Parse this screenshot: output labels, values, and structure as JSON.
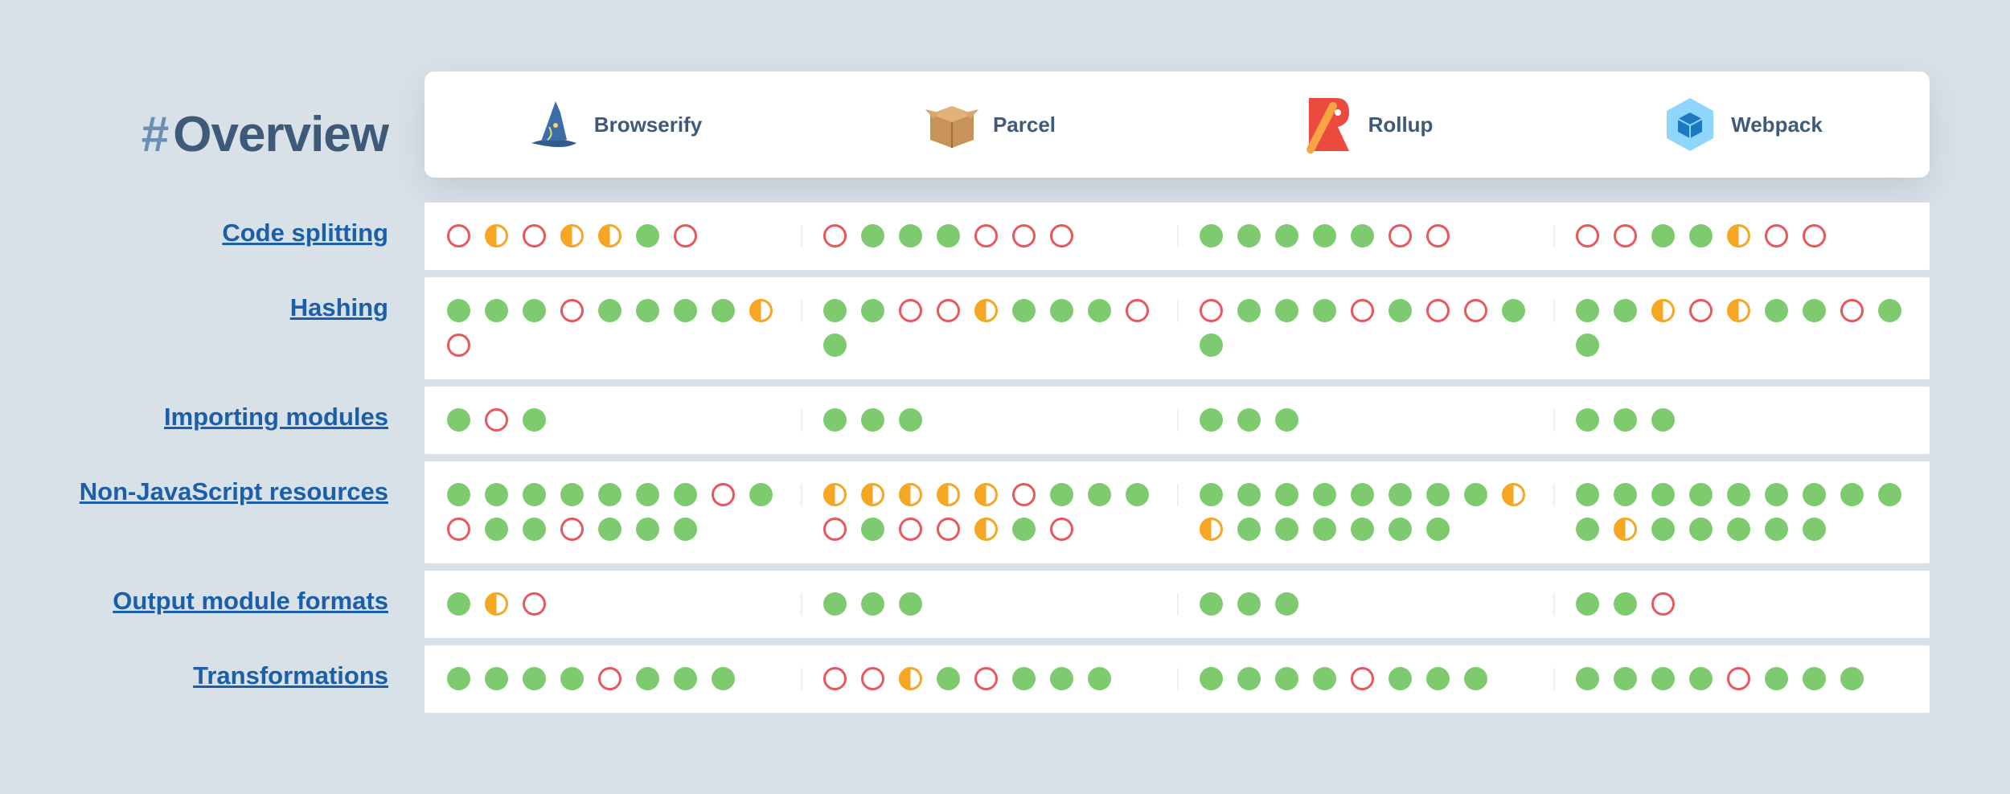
{
  "header": {
    "hash": "#",
    "title": "Overview",
    "tools": [
      "Browserify",
      "Parcel",
      "Rollup",
      "Webpack"
    ]
  },
  "rows": [
    {
      "label": "Code splitting",
      "results": [
        [
          "fail",
          "partial",
          "fail",
          "partial",
          "partial",
          "pass",
          "fail"
        ],
        [
          "fail",
          "pass",
          "pass",
          "pass",
          "fail",
          "fail",
          "fail"
        ],
        [
          "pass",
          "pass",
          "pass",
          "pass",
          "pass",
          "fail",
          "fail"
        ],
        [
          "fail",
          "fail",
          "pass",
          "pass",
          "partial",
          "fail",
          "fail"
        ]
      ]
    },
    {
      "label": "Hashing",
      "results": [
        [
          "pass",
          "pass",
          "pass",
          "fail",
          "pass",
          "pass",
          "pass",
          "pass",
          "partial",
          "fail"
        ],
        [
          "pass",
          "pass",
          "fail",
          "fail",
          "partial",
          "pass",
          "pass",
          "pass",
          "fail",
          "pass"
        ],
        [
          "fail",
          "pass",
          "pass",
          "pass",
          "fail",
          "pass",
          "fail",
          "fail",
          "pass",
          "pass"
        ],
        [
          "pass",
          "pass",
          "partial",
          "fail",
          "partial",
          "pass",
          "pass",
          "fail",
          "pass",
          "pass"
        ]
      ]
    },
    {
      "label": "Importing modules",
      "results": [
        [
          "pass",
          "fail",
          "pass"
        ],
        [
          "pass",
          "pass",
          "pass"
        ],
        [
          "pass",
          "pass",
          "pass"
        ],
        [
          "pass",
          "pass",
          "pass"
        ]
      ]
    },
    {
      "label": "Non-JavaScript resources",
      "results": [
        [
          "pass",
          "pass",
          "pass",
          "pass",
          "pass",
          "pass",
          "pass",
          "fail",
          "pass",
          "fail",
          "pass",
          "pass",
          "fail",
          "pass",
          "pass",
          "pass"
        ],
        [
          "partial",
          "partial",
          "partial",
          "partial",
          "partial",
          "fail",
          "pass",
          "pass",
          "pass",
          "fail",
          "pass",
          "fail",
          "fail",
          "partial",
          "pass",
          "fail"
        ],
        [
          "pass",
          "pass",
          "pass",
          "pass",
          "pass",
          "pass",
          "pass",
          "pass",
          "partial",
          "partial",
          "pass",
          "pass",
          "pass",
          "pass",
          "pass",
          "pass"
        ],
        [
          "pass",
          "pass",
          "pass",
          "pass",
          "pass",
          "pass",
          "pass",
          "pass",
          "pass",
          "pass",
          "partial",
          "pass",
          "pass",
          "pass",
          "pass",
          "pass"
        ]
      ]
    },
    {
      "label": "Output module formats",
      "results": [
        [
          "pass",
          "partial",
          "fail"
        ],
        [
          "pass",
          "pass",
          "pass"
        ],
        [
          "pass",
          "pass",
          "pass"
        ],
        [
          "pass",
          "pass",
          "fail"
        ]
      ]
    },
    {
      "label": "Transformations",
      "results": [
        [
          "pass",
          "pass",
          "pass",
          "pass",
          "fail",
          "pass",
          "pass",
          "pass"
        ],
        [
          "fail",
          "fail",
          "partial",
          "pass",
          "fail",
          "pass",
          "pass",
          "pass"
        ],
        [
          "pass",
          "pass",
          "pass",
          "pass",
          "fail",
          "pass",
          "pass",
          "pass"
        ],
        [
          "pass",
          "pass",
          "pass",
          "pass",
          "fail",
          "pass",
          "pass",
          "pass"
        ]
      ]
    }
  ]
}
